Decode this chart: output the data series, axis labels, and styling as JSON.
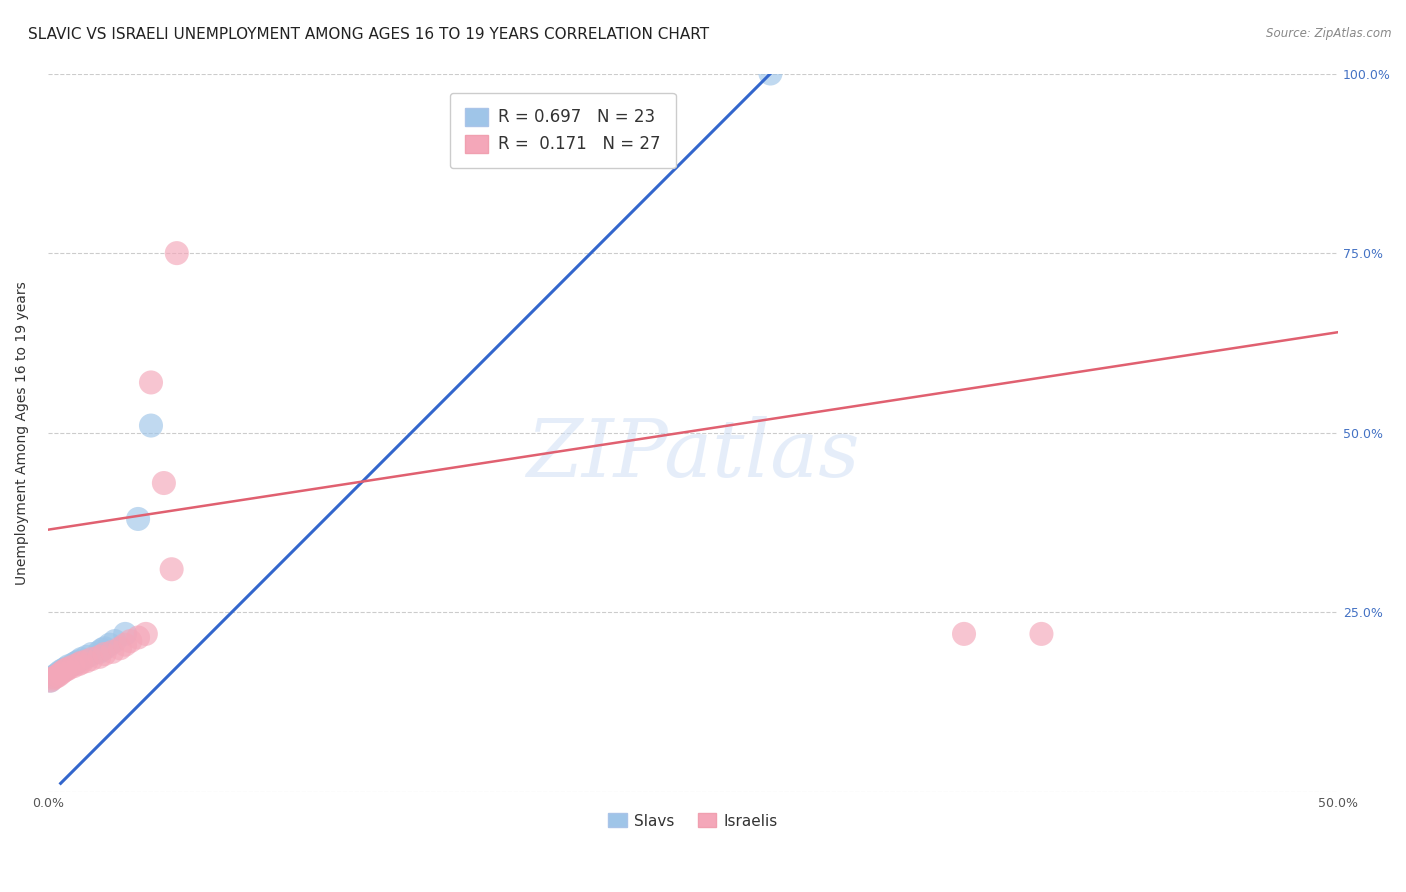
{
  "title": "SLAVIC VS ISRAELI UNEMPLOYMENT AMONG AGES 16 TO 19 YEARS CORRELATION CHART",
  "source": "Source: ZipAtlas.com",
  "ylabel": "Unemployment Among Ages 16 to 19 years",
  "xlim": [
    0.0,
    0.5
  ],
  "ylim": [
    0.0,
    1.0
  ],
  "blue_color": "#9fc5e8",
  "pink_color": "#f4a7b9",
  "blue_line_color": "#3366cc",
  "pink_line_color": "#e06070",
  "legend_blue_label": "R = 0.697   N = 23",
  "legend_pink_label": "R =  0.171   N = 27",
  "slavs_label": "Slavs",
  "israelis_label": "Israelis",
  "watermark": "ZIPatlas",
  "slavs_x": [
    0.001,
    0.002,
    0.003,
    0.004,
    0.005,
    0.006,
    0.007,
    0.008,
    0.01,
    0.011,
    0.012,
    0.013,
    0.015,
    0.017,
    0.02,
    0.021,
    0.022,
    0.024,
    0.026,
    0.03,
    0.035,
    0.04,
    0.28
  ],
  "slavs_y": [
    0.155,
    0.16,
    0.162,
    0.165,
    0.168,
    0.17,
    0.172,
    0.175,
    0.178,
    0.18,
    0.182,
    0.185,
    0.188,
    0.192,
    0.195,
    0.198,
    0.2,
    0.205,
    0.21,
    0.22,
    0.38,
    0.51,
    1.0
  ],
  "israelis_x": [
    0.001,
    0.002,
    0.003,
    0.004,
    0.005,
    0.006,
    0.007,
    0.008,
    0.01,
    0.012,
    0.013,
    0.015,
    0.017,
    0.02,
    0.022,
    0.025,
    0.028,
    0.03,
    0.032,
    0.035,
    0.038,
    0.04,
    0.045,
    0.048,
    0.05,
    0.355,
    0.385
  ],
  "israelis_y": [
    0.155,
    0.158,
    0.16,
    0.162,
    0.165,
    0.168,
    0.17,
    0.172,
    0.175,
    0.178,
    0.18,
    0.182,
    0.185,
    0.188,
    0.192,
    0.195,
    0.2,
    0.205,
    0.21,
    0.215,
    0.22,
    0.57,
    0.43,
    0.31,
    0.75,
    0.22,
    0.22
  ],
  "blue_trendline_x": [
    0.005,
    0.28
  ],
  "blue_trendline_y": [
    0.012,
    1.0
  ],
  "pink_trendline_x": [
    0.0,
    0.5
  ],
  "pink_trendline_y": [
    0.365,
    0.64
  ],
  "background_color": "#ffffff",
  "grid_color": "#cccccc",
  "title_fontsize": 11,
  "axis_label_fontsize": 10,
  "tick_fontsize": 9
}
